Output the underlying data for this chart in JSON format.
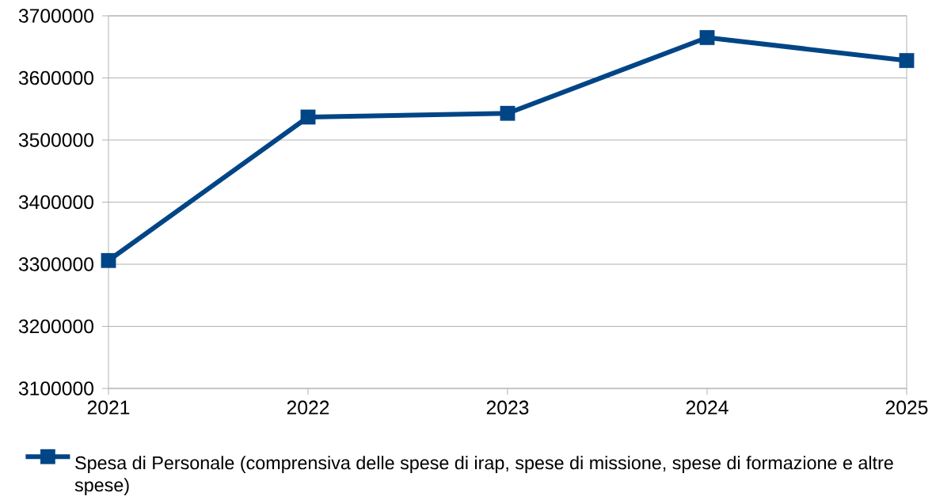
{
  "chart_data": {
    "type": "line",
    "categories": [
      "2021",
      "2022",
      "2023",
      "2024",
      "2025"
    ],
    "series": [
      {
        "name": "Spesa di Personale (comprensiva delle spese di irap, spese di missione, spese di formazione e altre spese)",
        "color": "#004586",
        "values": [
          3306000,
          3537000,
          3543000,
          3665000,
          3628000
        ]
      }
    ],
    "ylim": [
      3100000,
      3700000
    ],
    "yticks": [
      3100000,
      3200000,
      3300000,
      3400000,
      3500000,
      3600000,
      3700000
    ],
    "grid": "y",
    "legend": "bottom",
    "marker": "square",
    "line_style": "solid"
  }
}
